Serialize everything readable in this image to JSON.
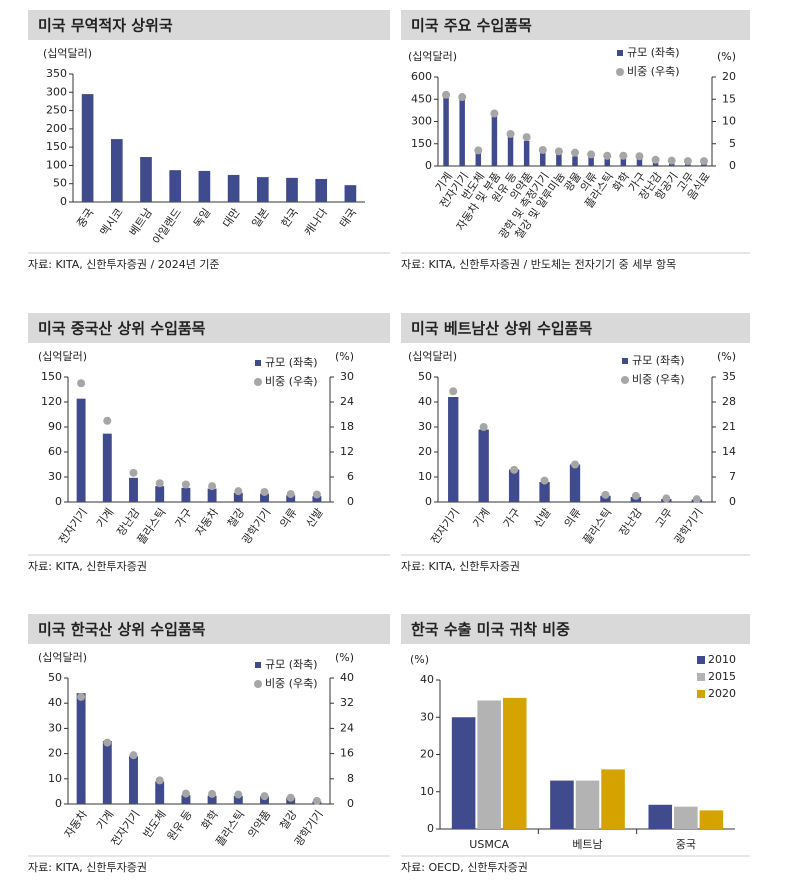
{
  "chart_data": [
    {
      "type": "bar",
      "title": "미국 무역적자 상위국",
      "ylabel": "(십억달러)",
      "source": "자료: KITA, 신한투자증권 / 2024년 기준",
      "categories": [
        "중국",
        "멕시코",
        "베트남",
        "아일랜드",
        "독일",
        "대만",
        "일본",
        "한국",
        "캐나다",
        "태국"
      ],
      "values": [
        295,
        172,
        123,
        87,
        85,
        74,
        68,
        66,
        63,
        46
      ],
      "color": "#3f4b8c",
      "ylim": [
        0,
        350
      ],
      "yticks": [
        0,
        50,
        100,
        150,
        200,
        250,
        300,
        350
      ]
    },
    {
      "type": "combo",
      "title": "미국 주요 수입품목",
      "ylabel": "(십억달러)",
      "y2label": "(%)",
      "source": "자료: KITA, 신한투자증권   / 반도체는 전자기기 중 세부 항목",
      "categories": [
        "기계",
        "전자기기",
        "반도체",
        "자동차 및 부품",
        "원유 등",
        "의약품",
        "광학 및 측정기기",
        "철강 및 알루미늄",
        "광물",
        "의류",
        "플라스틱",
        "화학",
        "가구",
        "장난감",
        "항공기",
        "고무",
        "음식료"
      ],
      "series": [
        {
          "name": "규모 (좌축)",
          "color": "#3f4b8c",
          "values": [
            480,
            465,
            85,
            345,
            200,
            170,
            95,
            80,
            65,
            60,
            55,
            55,
            50,
            30,
            25,
            22,
            20
          ]
        },
        {
          "name": "비중 (우축)",
          "color": "#a6a6a6",
          "axis": "y2",
          "values": [
            16,
            15.5,
            3.5,
            11.8,
            7.2,
            6.5,
            3.6,
            3.3,
            3,
            2.6,
            2.3,
            2.3,
            2.2,
            1.4,
            1.2,
            1.1,
            1.1
          ]
        }
      ],
      "ylim": [
        0,
        600
      ],
      "yticks": [
        0,
        150,
        300,
        450,
        600
      ],
      "y2lim": [
        0,
        20
      ],
      "y2ticks": [
        0,
        5,
        10,
        15,
        20
      ]
    },
    {
      "type": "combo",
      "title": "미국 중국산 상위 수입품목",
      "ylabel": "(십억달러)",
      "y2label": "(%)",
      "source": "자료: KITA, 신한투자증권",
      "categories": [
        "전자기기",
        "기계",
        "장난감",
        "플라스틱",
        "가구",
        "자동차",
        "철강",
        "광학기기",
        "의류",
        "신발"
      ],
      "series": [
        {
          "name": "규모 (좌축)",
          "color": "#3f4b8c",
          "values": [
            124,
            82,
            29,
            19,
            17,
            16,
            11,
            10,
            8,
            7
          ]
        },
        {
          "name": "비중 (우축)",
          "color": "#a6a6a6",
          "axis": "y2",
          "values": [
            28.5,
            19.5,
            7,
            4.5,
            4.2,
            3.8,
            2.6,
            2.4,
            1.9,
            1.8
          ]
        }
      ],
      "ylim": [
        0,
        150
      ],
      "yticks": [
        0,
        30,
        60,
        90,
        120,
        150
      ],
      "y2lim": [
        0,
        30
      ],
      "y2ticks": [
        0,
        6,
        12,
        18,
        24,
        30
      ]
    },
    {
      "type": "combo",
      "title": "미국 베트남산 상위 수입품목",
      "ylabel": "(십억달러)",
      "y2label": "(%)",
      "source": "자료: KITA, 신한투자증권",
      "categories": [
        "전자기기",
        "기계",
        "가구",
        "신발",
        "의류",
        "플라스틱",
        "장난감",
        "고무",
        "광학기기"
      ],
      "series": [
        {
          "name": "규모 (좌축)",
          "color": "#3f4b8c",
          "values": [
            42,
            29,
            13,
            8,
            15,
            2.5,
            2,
            1.2,
            1
          ]
        },
        {
          "name": "비중 (우축)",
          "color": "#a6a6a6",
          "axis": "y2",
          "values": [
            31,
            21,
            9,
            6,
            10.5,
            2,
            1.7,
            1,
            0.8
          ]
        }
      ],
      "ylim": [
        0,
        50
      ],
      "yticks": [
        0,
        10,
        20,
        30,
        40,
        50
      ],
      "y2lim": [
        0,
        35
      ],
      "y2ticks": [
        0,
        7,
        14,
        21,
        28,
        35
      ]
    },
    {
      "type": "combo",
      "title": "미국 한국산 상위 수입품목",
      "ylabel": "(십억달러)",
      "y2label": "(%)",
      "source": "자료: KITA, 신한투자증권",
      "categories": [
        "자동차",
        "기계",
        "전자기기",
        "반도체",
        "원유 등",
        "화학",
        "플라스틱",
        "의약품",
        "철강",
        "광학기기"
      ],
      "series": [
        {
          "name": "규모 (좌축)",
          "color": "#3f4b8c",
          "values": [
            44,
            25,
            19,
            9,
            3.5,
            3.3,
            3.2,
            3,
            2.5,
            1
          ]
        },
        {
          "name": "비중 (우축)",
          "color": "#a6a6a6",
          "axis": "y2",
          "values": [
            34,
            19.5,
            15.5,
            7.5,
            3.3,
            3.2,
            3,
            2.5,
            2,
            1
          ]
        }
      ],
      "ylim": [
        0,
        50
      ],
      "yticks": [
        0,
        10,
        20,
        30,
        40,
        50
      ],
      "y2lim": [
        0,
        40
      ],
      "y2ticks": [
        0,
        8,
        16,
        24,
        32,
        40
      ]
    },
    {
      "type": "bar",
      "title": "한국 수출 미국 귀착 비중",
      "ylabel": "(%)",
      "source": "자료: OECD, 신한투자증권",
      "categories": [
        "USMCA",
        "베트남",
        "중국"
      ],
      "series": [
        {
          "name": "2010",
          "color": "#3f4b8c",
          "values": [
            30,
            13,
            6.5
          ]
        },
        {
          "name": "2015",
          "color": "#b3b3b3",
          "values": [
            34.5,
            13,
            6
          ]
        },
        {
          "name": "2020",
          "color": "#d4a300",
          "values": [
            35.2,
            16,
            5
          ]
        }
      ],
      "ylim": [
        0,
        40
      ],
      "yticks": [
        0,
        10,
        20,
        30,
        40
      ]
    }
  ]
}
